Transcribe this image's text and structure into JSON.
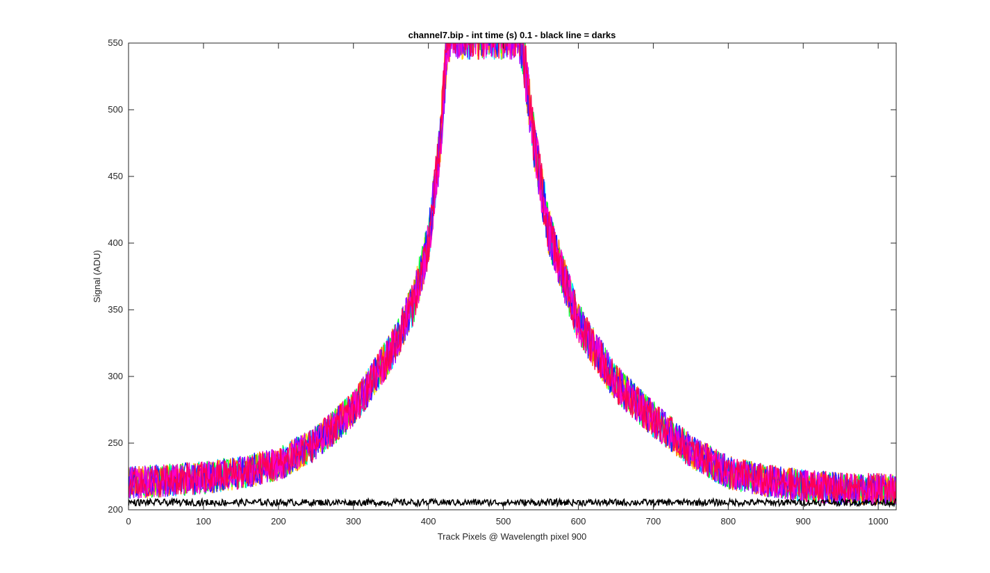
{
  "chart_data": {
    "type": "line",
    "title": "channel7.bip - int time (s) 0.1 - black line = darks",
    "xlabel": "Track Pixels @ Wavelength pixel 900",
    "ylabel": "Signal (ADU)",
    "xlim": [
      0,
      1024
    ],
    "ylim": [
      200,
      550
    ],
    "xticks": [
      0,
      100,
      200,
      300,
      400,
      500,
      600,
      700,
      800,
      900,
      1000
    ],
    "yticks": [
      200,
      250,
      300,
      350,
      400,
      450,
      500,
      550
    ],
    "grid": false,
    "legend": "none",
    "signal_series_colors": [
      "#00e5ff",
      "#ffd400",
      "#00ff33",
      "#ff6a00",
      "#1a1aff",
      "#a000ff",
      "#ff00c8",
      "#ff0055"
    ],
    "signal_profile": {
      "description_points_x": [
        0,
        50,
        100,
        150,
        200,
        250,
        300,
        350,
        380,
        400,
        415,
        425,
        430,
        520,
        525,
        540,
        560,
        600,
        650,
        700,
        750,
        800,
        850,
        900,
        950,
        1024
      ],
      "description_points_y": [
        220,
        222,
        224,
        228,
        234,
        250,
        275,
        318,
        355,
        400,
        470,
        550,
        560,
        560,
        550,
        480,
        410,
        340,
        295,
        268,
        244,
        228,
        222,
        218,
        216,
        215
      ],
      "noise_amplitude": 12,
      "saturated_x_range": [
        430,
        520
      ]
    },
    "dark_series": {
      "name": "darks",
      "color": "#000000",
      "mean": 205.5,
      "noise_amplitude": 2.5
    }
  }
}
